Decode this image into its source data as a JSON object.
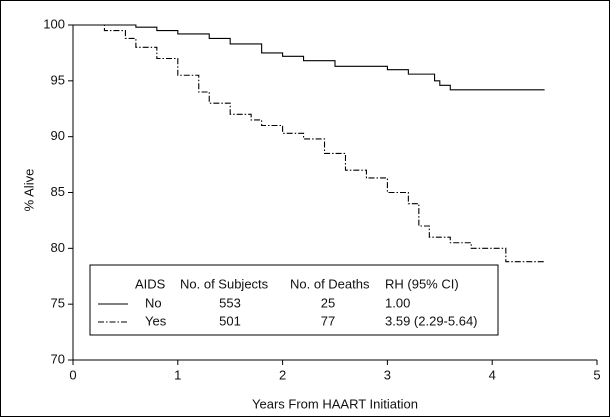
{
  "chart_data": {
    "type": "step",
    "x_label": "Years From HAART Initiation",
    "y_label": "% Alive",
    "xlim": [
      0,
      5
    ],
    "xticks": [
      0,
      1,
      2,
      3,
      4,
      5
    ],
    "ylim": [
      70,
      100
    ],
    "yticks": [
      70,
      75,
      80,
      85,
      90,
      95,
      100
    ],
    "legend_headers": [
      "AIDS",
      "No. of Subjects",
      "No. of Deaths",
      "RH (95% CI)"
    ],
    "series": [
      {
        "name": "No",
        "color": "#000000",
        "dash": "solid",
        "subjects": 553,
        "deaths": 25,
        "rh": "1.00",
        "x": [
          0,
          0.6,
          0.8,
          1.0,
          1.3,
          1.5,
          1.8,
          2.0,
          2.2,
          2.5,
          3.0,
          3.2,
          3.45,
          3.5,
          3.6,
          4.5
        ],
        "values": [
          100,
          99.8,
          99.5,
          99.2,
          98.8,
          98.3,
          97.5,
          97.2,
          96.8,
          96.3,
          96.0,
          95.6,
          95.0,
          94.6,
          94.2,
          94.2
        ]
      },
      {
        "name": "Yes",
        "color": "#000000",
        "dash": "dashdot",
        "subjects": 501,
        "deaths": 77,
        "rh": "3.59 (2.29-5.64)",
        "x": [
          0,
          0.3,
          0.5,
          0.6,
          0.8,
          1.0,
          1.2,
          1.3,
          1.5,
          1.7,
          1.8,
          2.0,
          2.2,
          2.4,
          2.6,
          2.8,
          3.0,
          3.2,
          3.3,
          3.4,
          3.6,
          3.8,
          4.13,
          4.5
        ],
        "values": [
          100,
          99.5,
          98.8,
          98,
          97,
          95.5,
          94,
          93,
          92,
          91.5,
          91,
          90.3,
          89.8,
          88.5,
          87,
          86.3,
          85,
          84,
          82,
          81,
          80.5,
          80,
          78.8,
          78.8
        ]
      }
    ]
  }
}
